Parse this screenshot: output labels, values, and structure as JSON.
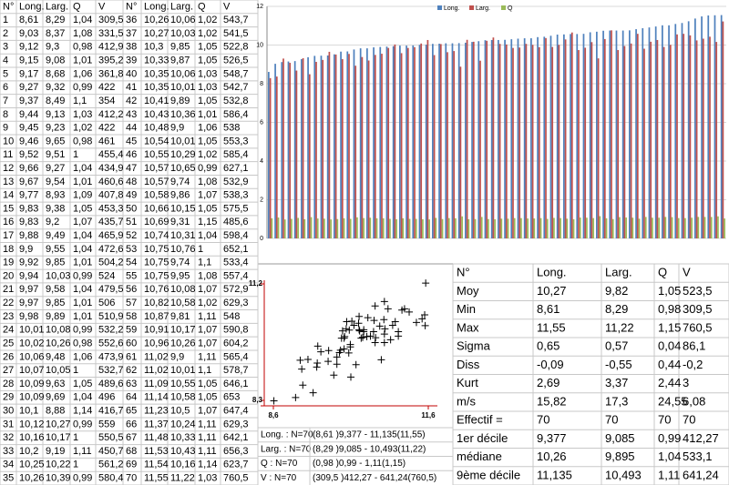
{
  "table": {
    "header": [
      "N°",
      "Long.",
      "Larg.",
      "Q",
      "V",
      "N°",
      "Long.",
      "Larg.",
      "Q",
      "V"
    ],
    "rows": [
      [
        "1",
        "8,61",
        "8,29",
        "1,04",
        "309,5",
        "36",
        "10,26",
        "10,06",
        "1,02",
        "543,7"
      ],
      [
        "2",
        "9,03",
        "8,37",
        "1,08",
        "331,5",
        "37",
        "10,27",
        "10,03",
        "1,02",
        "541,5"
      ],
      [
        "3",
        "9,12",
        "9,3",
        "0,98",
        "412,9",
        "38",
        "10,3",
        "9,85",
        "1,05",
        "522,8"
      ],
      [
        "4",
        "9,15",
        "9,08",
        "1,01",
        "395,2",
        "39",
        "10,33",
        "9,87",
        "1,05",
        "526,5"
      ],
      [
        "5",
        "9,17",
        "8,68",
        "1,06",
        "361,8",
        "40",
        "10,35",
        "10,06",
        "1,03",
        "548,7"
      ],
      [
        "6",
        "9,27",
        "9,32",
        "0,99",
        "422",
        "41",
        "10,35",
        "10,01",
        "1,03",
        "542,7"
      ],
      [
        "7",
        "9,37",
        "8,49",
        "1,1",
        "354",
        "42",
        "10,41",
        "9,89",
        "1,05",
        "532,8"
      ],
      [
        "8",
        "9,44",
        "9,13",
        "1,03",
        "412,2",
        "43",
        "10,43",
        "10,36",
        "1,01",
        "586,4"
      ],
      [
        "9",
        "9,45",
        "9,23",
        "1,02",
        "422",
        "44",
        "10,48",
        "9,9",
        "1,06",
        "538"
      ],
      [
        "10",
        "9,46",
        "9,65",
        "0,98",
        "461",
        "45",
        "10,54",
        "10,01",
        "1,05",
        "553,3"
      ],
      [
        "11",
        "9,52",
        "9,51",
        "1",
        "455,4",
        "46",
        "10,55",
        "10,29",
        "1,02",
        "585,4"
      ],
      [
        "12",
        "9,66",
        "9,27",
        "1,04",
        "434,9",
        "47",
        "10,57",
        "10,65",
        "0,99",
        "627,1"
      ],
      [
        "13",
        "9,67",
        "9,54",
        "1,01",
        "460,6",
        "48",
        "10,57",
        "9,74",
        "1,08",
        "532,9"
      ],
      [
        "14",
        "9,77",
        "8,93",
        "1,09",
        "407,8",
        "49",
        "10,58",
        "9,86",
        "1,07",
        "538,3"
      ],
      [
        "15",
        "9,83",
        "9,38",
        "1,05",
        "453,3",
        "50",
        "10,66",
        "10,15",
        "1,05",
        "575,5"
      ],
      [
        "16",
        "9,83",
        "9,2",
        "1,07",
        "435,7",
        "51",
        "10,69",
        "9,31",
        "1,15",
        "485,6"
      ],
      [
        "17",
        "9,88",
        "9,49",
        "1,04",
        "465,9",
        "52",
        "10,74",
        "10,31",
        "1,04",
        "598,4"
      ],
      [
        "18",
        "9,9",
        "9,55",
        "1,04",
        "472,6",
        "53",
        "10,75",
        "10,76",
        "1",
        "652,1"
      ],
      [
        "19",
        "9,92",
        "9,85",
        "1,01",
        "504,2",
        "54",
        "10,75",
        "9,74",
        "1,1",
        "533,4"
      ],
      [
        "20",
        "9,94",
        "10,03",
        "0,99",
        "524",
        "55",
        "10,75",
        "9,95",
        "1,08",
        "557,4"
      ],
      [
        "21",
        "9,97",
        "9,58",
        "1,04",
        "479,5",
        "56",
        "10,76",
        "10,08",
        "1,07",
        "572,9"
      ],
      [
        "22",
        "9,97",
        "9,85",
        "1,01",
        "506",
        "57",
        "10,82",
        "10,58",
        "1,02",
        "629,3"
      ],
      [
        "23",
        "9,98",
        "9,89",
        "1,01",
        "510,9",
        "58",
        "10,87",
        "9,81",
        "1,11",
        "548"
      ],
      [
        "24",
        "10,01",
        "10,08",
        "0,99",
        "532,2",
        "59",
        "10,91",
        "10,17",
        "1,07",
        "590,8"
      ],
      [
        "25",
        "10,02",
        "10,26",
        "0,98",
        "552,6",
        "60",
        "10,96",
        "10,26",
        "1,07",
        "604,2"
      ],
      [
        "26",
        "10,06",
        "9,48",
        "1,06",
        "473,9",
        "61",
        "11,02",
        "9,9",
        "1,11",
        "565,4"
      ],
      [
        "27",
        "10,07",
        "10,05",
        "1",
        "532,7",
        "62",
        "11,02",
        "10,01",
        "1,1",
        "578,7"
      ],
      [
        "28",
        "10,09",
        "9,63",
        "1,05",
        "489,6",
        "63",
        "11,09",
        "10,55",
        "1,05",
        "646,1"
      ],
      [
        "29",
        "10,09",
        "9,69",
        "1,04",
        "496",
        "64",
        "11,14",
        "10,58",
        "1,05",
        "653"
      ],
      [
        "30",
        "10,1",
        "8,88",
        "1,14",
        "416,7",
        "65",
        "11,23",
        "10,5",
        "1,07",
        "647,4"
      ],
      [
        "31",
        "10,12",
        "10,27",
        "0,99",
        "559",
        "66",
        "11,37",
        "10,24",
        "1,11",
        "629,3"
      ],
      [
        "32",
        "10,16",
        "10,17",
        "1",
        "550,5",
        "67",
        "11,48",
        "10,33",
        "1,11",
        "642,1"
      ],
      [
        "33",
        "10,2",
        "9,19",
        "1,11",
        "450,7",
        "68",
        "11,53",
        "10,43",
        "1,11",
        "656,3"
      ],
      [
        "34",
        "10,25",
        "10,22",
        "1",
        "561,2",
        "69",
        "11,54",
        "10,16",
        "1,14",
        "623,7"
      ],
      [
        "35",
        "10,26",
        "10,39",
        "0,99",
        "580,4",
        "70",
        "11,55",
        "11,22",
        "1,03",
        "760,5"
      ]
    ]
  },
  "chart_data": [
    {
      "type": "bar",
      "ylim": [
        0,
        12
      ],
      "yticks": [
        0,
        2,
        4,
        6,
        8,
        10,
        12
      ],
      "grid": true,
      "legend": "top",
      "series": [
        {
          "name": "Long.",
          "color": "#4f81bd",
          "values": [
            8.61,
            9.03,
            9.12,
            9.15,
            9.17,
            9.27,
            9.37,
            9.44,
            9.45,
            9.46,
            9.52,
            9.66,
            9.67,
            9.77,
            9.83,
            9.83,
            9.88,
            9.9,
            9.92,
            9.94,
            9.97,
            9.97,
            9.98,
            10.01,
            10.02,
            10.06,
            10.07,
            10.09,
            10.09,
            10.1,
            10.12,
            10.16,
            10.2,
            10.25,
            10.26,
            10.26,
            10.27,
            10.3,
            10.33,
            10.35,
            10.35,
            10.41,
            10.43,
            10.48,
            10.54,
            10.55,
            10.57,
            10.57,
            10.58,
            10.66,
            10.69,
            10.74,
            10.75,
            10.75,
            10.75,
            10.76,
            10.82,
            10.87,
            10.91,
            10.96,
            11.02,
            11.02,
            11.09,
            11.14,
            11.23,
            11.37,
            11.48,
            11.53,
            11.54,
            11.55
          ]
        },
        {
          "name": "Larg.",
          "color": "#c0504d",
          "values": [
            8.29,
            8.37,
            9.3,
            9.08,
            8.68,
            9.32,
            8.49,
            9.13,
            9.23,
            9.65,
            9.51,
            9.27,
            9.54,
            8.93,
            9.38,
            9.2,
            9.49,
            9.55,
            9.85,
            10.03,
            9.58,
            9.85,
            9.89,
            10.08,
            10.26,
            9.48,
            10.05,
            9.63,
            9.69,
            8.88,
            10.27,
            10.17,
            9.19,
            10.22,
            10.39,
            10.06,
            10.03,
            9.85,
            9.87,
            10.06,
            10.01,
            9.89,
            10.36,
            9.9,
            10.01,
            10.29,
            10.65,
            9.74,
            9.86,
            10.15,
            9.31,
            10.31,
            10.76,
            9.74,
            9.95,
            10.08,
            10.58,
            9.81,
            10.17,
            10.26,
            9.9,
            10.01,
            10.55,
            10.58,
            10.5,
            10.24,
            10.33,
            10.43,
            10.16,
            11.22
          ]
        },
        {
          "name": "Q",
          "color": "#9bbb59",
          "values": [
            1.04,
            1.08,
            0.98,
            1.01,
            1.06,
            0.99,
            1.1,
            1.03,
            1.02,
            0.98,
            1,
            1.04,
            1.01,
            1.09,
            1.05,
            1.07,
            1.04,
            1.04,
            1.01,
            0.99,
            1.04,
            1.01,
            1.01,
            0.99,
            0.98,
            1.06,
            1,
            1.05,
            1.04,
            1.14,
            0.99,
            1,
            1.11,
            1,
            0.99,
            1.02,
            1.02,
            1.05,
            1.05,
            1.03,
            1.03,
            1.05,
            1.01,
            1.06,
            1.05,
            1.02,
            0.99,
            1.08,
            1.07,
            1.05,
            1.15,
            1.04,
            1,
            1.1,
            1.08,
            1.07,
            1.02,
            1.11,
            1.07,
            1.07,
            1.11,
            1.1,
            1.05,
            1.05,
            1.07,
            1.11,
            1.11,
            1.11,
            1.14,
            1.03
          ]
        }
      ]
    },
    {
      "type": "scatter",
      "color": "#000000",
      "axis_color": "#c00000",
      "xlim": [
        8.6,
        11.6
      ],
      "xticks": [
        {
          "value": 8.6,
          "label": "8,6"
        },
        {
          "value": 11.6,
          "label": "11,6"
        }
      ],
      "ylim": [
        8.3,
        11.2
      ],
      "yticks": [
        {
          "value": 8.3,
          "label": "8,3"
        },
        {
          "value": 11.2,
          "label": "11,2"
        }
      ],
      "x": [
        8.61,
        9.03,
        9.12,
        9.15,
        9.17,
        9.27,
        9.37,
        9.44,
        9.45,
        9.46,
        9.52,
        9.66,
        9.67,
        9.77,
        9.83,
        9.83,
        9.88,
        9.9,
        9.92,
        9.94,
        9.97,
        9.97,
        9.98,
        10.01,
        10.02,
        10.06,
        10.07,
        10.09,
        10.09,
        10.1,
        10.12,
        10.16,
        10.2,
        10.25,
        10.26,
        10.26,
        10.27,
        10.3,
        10.33,
        10.35,
        10.35,
        10.41,
        10.43,
        10.48,
        10.54,
        10.55,
        10.57,
        10.57,
        10.58,
        10.66,
        10.69,
        10.74,
        10.75,
        10.75,
        10.75,
        10.76,
        10.82,
        10.87,
        10.91,
        10.96,
        11.02,
        11.02,
        11.09,
        11.14,
        11.23,
        11.37,
        11.48,
        11.53,
        11.54,
        11.55
      ],
      "values": [
        8.29,
        8.37,
        9.3,
        9.08,
        8.68,
        9.32,
        8.49,
        9.13,
        9.23,
        9.65,
        9.51,
        9.27,
        9.54,
        8.93,
        9.38,
        9.2,
        9.49,
        9.55,
        9.85,
        10.03,
        9.58,
        9.85,
        9.89,
        10.08,
        10.26,
        9.48,
        10.05,
        9.63,
        9.69,
        8.88,
        10.27,
        10.17,
        9.19,
        10.22,
        10.39,
        10.06,
        10.03,
        9.85,
        9.87,
        10.06,
        10.01,
        9.89,
        10.36,
        9.9,
        10.01,
        10.29,
        10.65,
        9.74,
        9.86,
        10.15,
        9.31,
        10.31,
        10.76,
        9.74,
        9.95,
        10.08,
        10.58,
        9.81,
        10.17,
        10.26,
        9.9,
        10.01,
        10.55,
        10.58,
        10.5,
        10.24,
        10.33,
        10.43,
        10.16,
        11.22
      ]
    }
  ],
  "summary": {
    "rows": [
      [
        "Long. : N=70",
        "(8,61 )9,377 - 11,135(11,55)"
      ],
      [
        "Larg. : N=70",
        "(8,29 )9,085 - 10,493(11,22)"
      ],
      [
        "Q : N=70",
        "(0,98 )0,99 - 1,11(1,15)"
      ],
      [
        "V : N=70",
        "(309,5 )412,27 - 641,24(760,5)"
      ]
    ]
  },
  "stats": {
    "header": [
      "N°",
      "Long.",
      "Larg.",
      "Q",
      "V"
    ],
    "rows": [
      [
        "Moy",
        "10,27",
        "9,82",
        "1,05",
        "523,5"
      ],
      [
        "Min",
        "8,61",
        "8,29",
        "0,98",
        "309,5"
      ],
      [
        "Max",
        "11,55",
        "11,22",
        "1,15",
        "760,5"
      ],
      [
        "Sigma",
        "0,65",
        "0,57",
        "0,04",
        "86,1"
      ],
      [
        "Diss",
        "-0,09",
        "-0,55",
        "0,44",
        "-0,2"
      ],
      [
        "Kurt",
        "2,69",
        "3,37",
        "2,44",
        "3"
      ],
      [
        "m/s",
        "15,82",
        "17,3",
        "24,55",
        "6,08"
      ],
      [
        "Effectif =",
        "70",
        "70",
        "70",
        "70"
      ],
      [
        "1er décile",
        "9,377",
        "9,085",
        "0,99",
        "412,27"
      ],
      [
        "médiane",
        "10,26",
        "9,895",
        "1,04",
        "533,1"
      ],
      [
        "9ème décile",
        "11,135",
        "10,493",
        "1,11",
        "641,24"
      ]
    ]
  }
}
